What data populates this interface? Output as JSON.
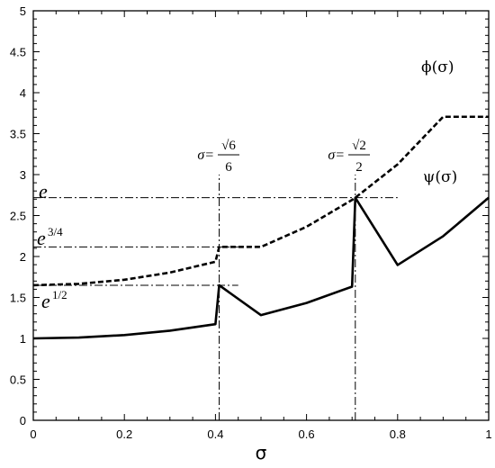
{
  "chart_data": {
    "type": "line",
    "xlabel": "σ",
    "ylabel": "",
    "title": "",
    "xlim": [
      0,
      1
    ],
    "ylim": [
      0,
      5
    ],
    "x_ticks": [
      0,
      0.2,
      0.4,
      0.6,
      0.8,
      1
    ],
    "x_tick_labels": [
      "0",
      "0.2",
      "0.4",
      "0.6",
      "0.8",
      "1"
    ],
    "y_ticks": [
      0,
      0.5,
      1,
      1.5,
      2,
      2.5,
      3,
      3.5,
      4,
      4.5,
      5
    ],
    "y_tick_labels": [
      "0",
      "0.5",
      "1",
      "1.5",
      "2",
      "2.5",
      "3",
      "3.5",
      "4",
      "4.5",
      "5"
    ],
    "grid": false,
    "series": [
      {
        "name": "ϕ(σ)",
        "style": "solid",
        "x": [
          0,
          0.1,
          0.2,
          0.3,
          0.4,
          0.4082,
          0.5,
          0.6,
          0.7,
          0.7071,
          0.8,
          0.9,
          1.0
        ],
        "y": [
          1.0,
          1.01,
          1.041,
          1.094,
          1.174,
          1.649,
          1.284,
          1.433,
          1.632,
          2.718,
          1.896,
          2.248,
          2.718
        ]
      },
      {
        "name": "ψ(σ)",
        "style": "dashed",
        "x": [
          0,
          0.1,
          0.2,
          0.3,
          0.4,
          0.4082,
          0.5,
          0.6,
          0.7,
          0.7071,
          0.8,
          0.9,
          1.0
        ],
        "y": [
          1.649,
          1.666,
          1.716,
          1.804,
          1.936,
          2.117,
          2.117,
          2.363,
          2.691,
          2.718,
          3.125,
          3.706,
          3.706
        ]
      }
    ],
    "reference_lines": {
      "vertical": [
        {
          "x": 0.4082,
          "y_from": 0,
          "y_to": 3.0,
          "label_lhs": "σ=",
          "label_num": "√6",
          "label_den": "6"
        },
        {
          "x": 0.7071,
          "y_from": 0,
          "y_to": 3.0,
          "label_lhs": "σ=",
          "label_num": "√2",
          "label_den": "2"
        }
      ],
      "horizontal": [
        {
          "y": 2.718,
          "x_from": 0,
          "x_to": 0.8,
          "label_base": "e",
          "label_exp": ""
        },
        {
          "y": 2.117,
          "x_from": 0,
          "x_to": 0.45,
          "label_base": "e",
          "label_exp": "3/4"
        },
        {
          "y": 1.649,
          "x_from": 0,
          "x_to": 0.45,
          "label_base": "e",
          "label_exp": "1/2"
        }
      ]
    }
  }
}
